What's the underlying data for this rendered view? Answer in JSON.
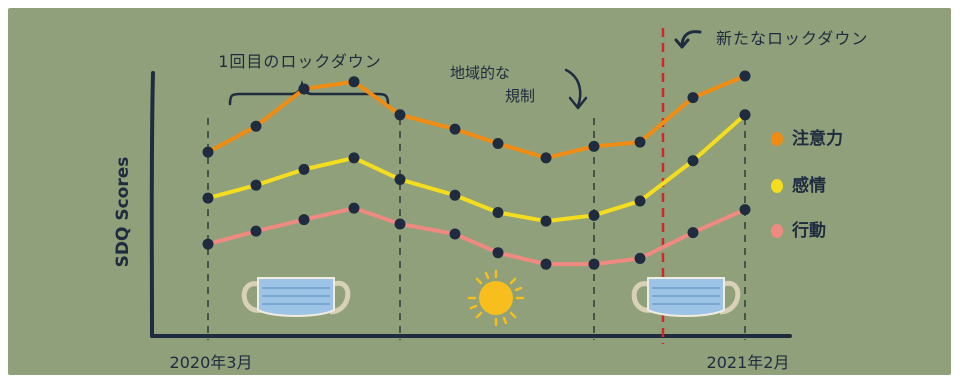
{
  "colors": {
    "background": "#8fa07a",
    "ink": "#1f2b3f",
    "attention": "#f08c14",
    "emotion": "#f3dd1e",
    "behavior": "#ee8a80",
    "lockdown_line": "#cc2a2a",
    "sun": "#f7be1d",
    "mask": "#9dc3e6"
  },
  "annotations": {
    "first_lockdown": "1回目のロックダウン",
    "regional_line1": "地域的な",
    "regional_line2": "規制",
    "new_lockdown": "新たなロックダウン"
  },
  "icons": [
    "mask-icon",
    "sun-icon",
    "mask-icon",
    "curved-arrow-icon"
  ],
  "chart_data": {
    "type": "line",
    "ylabel": "SDQ Scores",
    "x_tick_labels": [
      "2020年3月",
      "2021年2月"
    ],
    "x": [
      1,
      2,
      3,
      4,
      5,
      6,
      7,
      8,
      9,
      10,
      11,
      12
    ],
    "series": [
      {
        "name": "注意力",
        "color": "#f08c14",
        "values": [
          6.4,
          7.3,
          8.6,
          8.85,
          7.7,
          7.2,
          6.7,
          6.2,
          6.6,
          6.75,
          8.3,
          9.05
        ]
      },
      {
        "name": "感情",
        "color": "#f3dd1e",
        "values": [
          4.8,
          5.25,
          5.8,
          6.2,
          5.45,
          4.9,
          4.3,
          4.0,
          4.2,
          4.7,
          6.1,
          7.7
        ]
      },
      {
        "name": "行動",
        "color": "#ee8a80",
        "values": [
          3.2,
          3.65,
          4.05,
          4.45,
          3.9,
          3.55,
          2.9,
          2.5,
          2.5,
          2.7,
          3.6,
          4.4
        ]
      }
    ],
    "ylim": [
      0,
      11
    ],
    "grid": false,
    "legend_position": "right"
  }
}
